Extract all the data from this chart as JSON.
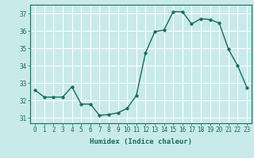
{
  "x": [
    0,
    1,
    2,
    3,
    4,
    5,
    6,
    7,
    8,
    9,
    10,
    11,
    12,
    13,
    14,
    15,
    16,
    17,
    18,
    19,
    20,
    21,
    22,
    23
  ],
  "y": [
    32.6,
    32.2,
    32.2,
    32.2,
    32.8,
    31.8,
    31.8,
    31.15,
    31.2,
    31.3,
    31.55,
    32.3,
    34.75,
    35.95,
    36.05,
    37.1,
    37.1,
    36.4,
    36.7,
    36.65,
    36.45,
    34.95,
    34.0,
    32.75
  ],
  "ylim": [
    30.7,
    37.5
  ],
  "yticks": [
    31,
    32,
    33,
    34,
    35,
    36,
    37
  ],
  "xlim": [
    -0.5,
    23.5
  ],
  "xticks": [
    0,
    1,
    2,
    3,
    4,
    5,
    6,
    7,
    8,
    9,
    10,
    11,
    12,
    13,
    14,
    15,
    16,
    17,
    18,
    19,
    20,
    21,
    22,
    23
  ],
  "xlabel": "Humidex (Indice chaleur)",
  "line_color": "#1a6b5a",
  "marker_color": "#1a6b5a",
  "bg_color": "#c8eaea",
  "grid_color": "#ffffff",
  "tick_color": "#1a6b5a",
  "label_color": "#1a6b5a",
  "marker_size": 2.5,
  "line_width": 1.0
}
